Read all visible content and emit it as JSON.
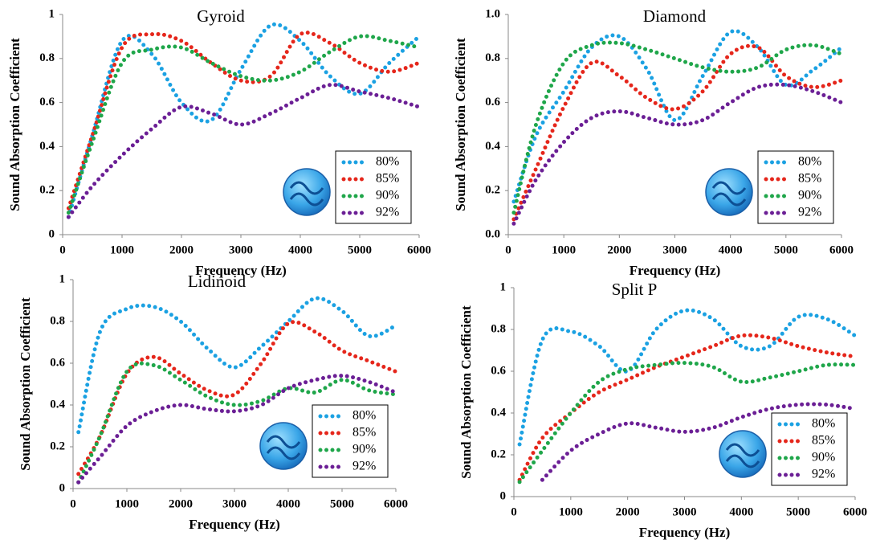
{
  "chart_data": [
    {
      "type": "line",
      "title": "Gyroid",
      "x_label": "Frequency (Hz)",
      "y_label": "Sound Absorption Coefficient",
      "x": [
        100,
        500,
        1000,
        1500,
        2000,
        2500,
        3000,
        3500,
        4000,
        4500,
        5000,
        5500,
        6000
      ],
      "xlim": [
        0,
        6000
      ],
      "xticks": [
        0,
        1000,
        2000,
        3000,
        4000,
        5000,
        6000
      ],
      "ylim": [
        0,
        1
      ],
      "yticks": [
        0,
        0.2,
        0.4,
        0.6,
        0.8,
        1
      ],
      "legend": "lower right",
      "series": [
        {
          "name": "80%",
          "color": "#1ba1e2",
          "values": [
            0.08,
            0.45,
            0.88,
            0.82,
            0.6,
            0.52,
            0.75,
            0.95,
            0.88,
            0.72,
            0.64,
            0.78,
            0.9
          ]
        },
        {
          "name": "85%",
          "color": "#e5261b",
          "values": [
            0.12,
            0.45,
            0.85,
            0.91,
            0.88,
            0.78,
            0.7,
            0.72,
            0.91,
            0.87,
            0.78,
            0.74,
            0.78
          ]
        },
        {
          "name": "90%",
          "color": "#1fa64a",
          "values": [
            0.1,
            0.42,
            0.78,
            0.84,
            0.85,
            0.78,
            0.72,
            0.7,
            0.74,
            0.83,
            0.9,
            0.88,
            0.85
          ]
        },
        {
          "name": "92%",
          "color": "#6b1f95",
          "values": [
            0.08,
            0.22,
            0.36,
            0.48,
            0.58,
            0.55,
            0.5,
            0.55,
            0.62,
            0.68,
            0.65,
            0.62,
            0.58
          ]
        }
      ]
    },
    {
      "type": "line",
      "title": "Diamond",
      "x_label": "Frequency (Hz)",
      "y_label": "Sound Absorption Coefficient",
      "x": [
        100,
        500,
        1000,
        1500,
        2000,
        2500,
        3000,
        3500,
        4000,
        4500,
        5000,
        5500,
        6000
      ],
      "xlim": [
        0,
        6000
      ],
      "xticks": [
        0,
        1000,
        2000,
        3000,
        4000,
        5000,
        6000
      ],
      "ylim": [
        0,
        1
      ],
      "yticks": [
        {
          "value": 0,
          "label": "0.0"
        },
        0.2,
        0.4,
        0.6,
        0.8,
        {
          "value": 1,
          "label": "1.0"
        }
      ],
      "legend": "lower right",
      "series": [
        {
          "name": "80%",
          "color": "#1ba1e2",
          "values": [
            0.15,
            0.45,
            0.65,
            0.85,
            0.9,
            0.75,
            0.52,
            0.72,
            0.92,
            0.85,
            0.68,
            0.75,
            0.85
          ]
        },
        {
          "name": "85%",
          "color": "#e5261b",
          "values": [
            0.07,
            0.3,
            0.58,
            0.78,
            0.72,
            0.62,
            0.57,
            0.65,
            0.82,
            0.85,
            0.72,
            0.67,
            0.7
          ]
        },
        {
          "name": "90%",
          "color": "#1fa64a",
          "values": [
            0.1,
            0.5,
            0.78,
            0.86,
            0.87,
            0.84,
            0.8,
            0.76,
            0.74,
            0.76,
            0.84,
            0.86,
            0.82
          ]
        },
        {
          "name": "92%",
          "color": "#6b1f95",
          "values": [
            0.05,
            0.25,
            0.42,
            0.53,
            0.56,
            0.53,
            0.5,
            0.52,
            0.6,
            0.67,
            0.68,
            0.65,
            0.6
          ]
        }
      ]
    },
    {
      "type": "line",
      "title": "Lidinoid",
      "x_label": "Frequency (Hz)",
      "y_label": "Sound Absorption Coefficient",
      "x": [
        100,
        500,
        1000,
        1500,
        2000,
        2500,
        3000,
        3500,
        4000,
        4500,
        5000,
        5500,
        6000
      ],
      "xlim": [
        0,
        6000
      ],
      "xticks": [
        0,
        1000,
        2000,
        3000,
        4000,
        5000,
        6000
      ],
      "ylim": [
        0,
        1
      ],
      "yticks": [
        0,
        0.2,
        0.4,
        0.6,
        0.8,
        1
      ],
      "legend": "lower right",
      "series": [
        {
          "name": "80%",
          "color": "#1ba1e2",
          "values": [
            0.27,
            0.75,
            0.86,
            0.87,
            0.8,
            0.67,
            0.58,
            0.68,
            0.8,
            0.91,
            0.85,
            0.73,
            0.78
          ]
        },
        {
          "name": "85%",
          "color": "#e5261b",
          "values": [
            0.07,
            0.25,
            0.55,
            0.63,
            0.55,
            0.47,
            0.45,
            0.6,
            0.79,
            0.75,
            0.66,
            0.61,
            0.56
          ]
        },
        {
          "name": "90%",
          "color": "#1fa64a",
          "values": [
            0.03,
            0.25,
            0.56,
            0.59,
            0.52,
            0.44,
            0.4,
            0.42,
            0.48,
            0.46,
            0.52,
            0.47,
            0.45
          ]
        },
        {
          "name": "92%",
          "color": "#6b1f95",
          "values": [
            0.03,
            0.15,
            0.3,
            0.37,
            0.4,
            0.38,
            0.37,
            0.4,
            0.48,
            0.52,
            0.54,
            0.51,
            0.46
          ]
        }
      ]
    },
    {
      "type": "line",
      "title": "Split P",
      "x_label": "Frequency (Hz)",
      "y_label": "Sound Absorption Coefficient",
      "x": [
        100,
        500,
        1000,
        1500,
        2000,
        2500,
        3000,
        3500,
        4000,
        4500,
        5000,
        5500,
        6000
      ],
      "xlim": [
        0,
        6000
      ],
      "xticks": [
        0,
        1000,
        2000,
        3000,
        4000,
        5000,
        6000
      ],
      "ylim": [
        0,
        1
      ],
      "yticks": [
        0,
        0.2,
        0.4,
        0.6,
        0.8,
        1
      ],
      "legend": "lower right",
      "series": [
        {
          "name": "80%",
          "color": "#1ba1e2",
          "values": [
            0.25,
            0.75,
            0.79,
            0.72,
            0.6,
            0.8,
            0.89,
            0.85,
            0.72,
            0.72,
            0.86,
            0.85,
            0.77
          ]
        },
        {
          "name": "85%",
          "color": "#e5261b",
          "values": [
            0.08,
            0.28,
            0.4,
            0.5,
            0.56,
            0.62,
            0.67,
            0.72,
            0.77,
            0.76,
            0.72,
            0.69,
            0.67
          ]
        },
        {
          "name": "90%",
          "color": "#1fa64a",
          "values": [
            0.07,
            0.22,
            0.4,
            0.55,
            0.61,
            0.63,
            0.64,
            0.62,
            0.55,
            0.57,
            0.6,
            0.63,
            0.63
          ]
        },
        {
          "name": "92%",
          "color": "#6b1f95",
          "values": [
            null,
            0.08,
            0.22,
            0.3,
            0.35,
            0.33,
            0.31,
            0.33,
            0.38,
            0.42,
            0.44,
            0.44,
            0.42
          ]
        }
      ]
    }
  ]
}
